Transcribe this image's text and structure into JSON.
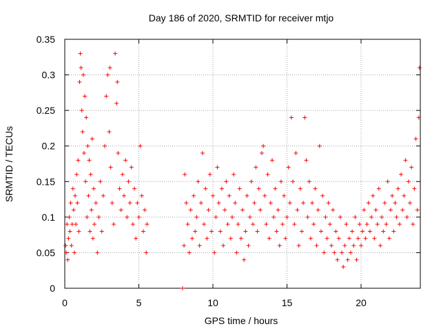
{
  "chart_data": {
    "type": "scatter",
    "title": "Day 186 of 2020, SRMTID for receiver mtjo",
    "xlabel": "GPS time / hours",
    "ylabel": "SRMTID / TECUs",
    "xlim": [
      0,
      24
    ],
    "ylim": [
      0,
      0.35
    ],
    "xticks": [
      0,
      5,
      10,
      15,
      20
    ],
    "xtick_labels": [
      "0",
      "5",
      "10",
      "15",
      "20"
    ],
    "yticks": [
      0,
      0.05,
      0.1,
      0.15,
      0.2,
      0.25,
      0.3,
      0.35
    ],
    "ytick_labels": [
      "0",
      "0.05",
      "0.1",
      "0.15",
      "0.2",
      "0.25",
      "0.3",
      "0.35"
    ],
    "grid": true,
    "marker": "+",
    "color": "#ff0000",
    "series": [
      {
        "name": "SRMTID",
        "points": [
          [
            0.05,
            0.06
          ],
          [
            0.1,
            0.05
          ],
          [
            0.15,
            0.09
          ],
          [
            0.2,
            0.04
          ],
          [
            0.25,
            0.07
          ],
          [
            0.3,
            0.1
          ],
          [
            0.35,
            0.08
          ],
          [
            0.4,
            0.12
          ],
          [
            0.45,
            0.06
          ],
          [
            0.5,
            0.09
          ],
          [
            0.55,
            0.14
          ],
          [
            0.6,
            0.11
          ],
          [
            0.65,
            0.05
          ],
          [
            0.7,
            0.13
          ],
          [
            0.75,
            0.09
          ],
          [
            0.8,
            0.16
          ],
          [
            0.85,
            0.12
          ],
          [
            0.9,
            0.18
          ],
          [
            0.95,
            0.08
          ],
          [
            1.0,
            0.29
          ],
          [
            1.05,
            0.33
          ],
          [
            1.1,
            0.31
          ],
          [
            1.15,
            0.25
          ],
          [
            1.2,
            0.22
          ],
          [
            1.25,
            0.3
          ],
          [
            1.3,
            0.19
          ],
          [
            1.35,
            0.27
          ],
          [
            1.4,
            0.15
          ],
          [
            1.45,
            0.24
          ],
          [
            1.5,
            0.1
          ],
          [
            1.55,
            0.2
          ],
          [
            1.6,
            0.13
          ],
          [
            1.65,
            0.18
          ],
          [
            1.7,
            0.08
          ],
          [
            1.75,
            0.16
          ],
          [
            1.8,
            0.11
          ],
          [
            1.85,
            0.21
          ],
          [
            1.9,
            0.07
          ],
          [
            1.95,
            0.14
          ],
          [
            2.0,
            0.09
          ],
          [
            2.1,
            0.12
          ],
          [
            2.2,
            0.05
          ],
          [
            2.3,
            0.1
          ],
          [
            2.4,
            0.15
          ],
          [
            2.5,
            0.08
          ],
          [
            2.6,
            0.13
          ],
          [
            2.7,
            0.2
          ],
          [
            2.8,
            0.27
          ],
          [
            2.9,
            0.3
          ],
          [
            3.0,
            0.22
          ],
          [
            3.05,
            0.31
          ],
          [
            3.1,
            0.17
          ],
          [
            3.2,
            0.12
          ],
          [
            3.3,
            0.09
          ],
          [
            3.4,
            0.33
          ],
          [
            3.5,
            0.26
          ],
          [
            3.55,
            0.29
          ],
          [
            3.6,
            0.19
          ],
          [
            3.7,
            0.14
          ],
          [
            3.8,
            0.11
          ],
          [
            3.9,
            0.16
          ],
          [
            4.0,
            0.13
          ],
          [
            4.1,
            0.18
          ],
          [
            4.2,
            0.1
          ],
          [
            4.3,
            0.15
          ],
          [
            4.4,
            0.12
          ],
          [
            4.5,
            0.17
          ],
          [
            4.6,
            0.09
          ],
          [
            4.7,
            0.14
          ],
          [
            4.8,
            0.07
          ],
          [
            4.9,
            0.12
          ],
          [
            5.0,
            0.1
          ],
          [
            5.1,
            0.2
          ],
          [
            5.2,
            0.13
          ],
          [
            5.3,
            0.08
          ],
          [
            5.4,
            0.11
          ],
          [
            5.5,
            0.05
          ],
          [
            5.55,
            0.09
          ],
          [
            7.95,
            0.0
          ],
          [
            8.05,
            0.06
          ],
          [
            8.1,
            0.16
          ],
          [
            8.2,
            0.12
          ],
          [
            8.3,
            0.09
          ],
          [
            8.4,
            0.05
          ],
          [
            8.5,
            0.11
          ],
          [
            8.6,
            0.07
          ],
          [
            8.7,
            0.13
          ],
          [
            8.8,
            0.08
          ],
          [
            8.9,
            0.1
          ],
          [
            9.0,
            0.15
          ],
          [
            9.1,
            0.06
          ],
          [
            9.2,
            0.12
          ],
          [
            9.3,
            0.19
          ],
          [
            9.4,
            0.09
          ],
          [
            9.5,
            0.14
          ],
          [
            9.6,
            0.07
          ],
          [
            9.7,
            0.11
          ],
          [
            9.8,
            0.16
          ],
          [
            9.9,
            0.08
          ],
          [
            10.0,
            0.13
          ],
          [
            10.1,
            0.05
          ],
          [
            10.2,
            0.1
          ],
          [
            10.3,
            0.17
          ],
          [
            10.4,
            0.12
          ],
          [
            10.5,
            0.08
          ],
          [
            10.6,
            0.14
          ],
          [
            10.7,
            0.06
          ],
          [
            10.8,
            0.11
          ],
          [
            10.9,
            0.15
          ],
          [
            11.0,
            0.09
          ],
          [
            11.1,
            0.13
          ],
          [
            11.2,
            0.07
          ],
          [
            11.3,
            0.1
          ],
          [
            11.4,
            0.16
          ],
          [
            11.5,
            0.12
          ],
          [
            11.6,
            0.05
          ],
          [
            11.7,
            0.09
          ],
          [
            11.8,
            0.14
          ],
          [
            11.9,
            0.07
          ],
          [
            12.0,
            0.11
          ],
          [
            12.1,
            0.04
          ],
          [
            12.2,
            0.08
          ],
          [
            12.3,
            0.13
          ],
          [
            12.4,
            0.06
          ],
          [
            12.5,
            0.1
          ],
          [
            12.6,
            0.15
          ],
          [
            12.7,
            0.09
          ],
          [
            12.8,
            0.12
          ],
          [
            12.9,
            0.17
          ],
          [
            13.0,
            0.08
          ],
          [
            13.1,
            0.14
          ],
          [
            13.2,
            0.11
          ],
          [
            13.3,
            0.19
          ],
          [
            13.4,
            0.2
          ],
          [
            13.5,
            0.13
          ],
          [
            13.6,
            0.09
          ],
          [
            13.7,
            0.16
          ],
          [
            13.8,
            0.07
          ],
          [
            13.9,
            0.12
          ],
          [
            14.0,
            0.18
          ],
          [
            14.1,
            0.1
          ],
          [
            14.2,
            0.14
          ],
          [
            14.3,
            0.08
          ],
          [
            14.4,
            0.11
          ],
          [
            14.5,
            0.06
          ],
          [
            14.6,
            0.15
          ],
          [
            14.7,
            0.09
          ],
          [
            14.8,
            0.13
          ],
          [
            14.9,
            0.07
          ],
          [
            15.0,
            0.1
          ],
          [
            15.1,
            0.17
          ],
          [
            15.2,
            0.12
          ],
          [
            15.3,
            0.24
          ],
          [
            15.4,
            0.15
          ],
          [
            15.5,
            0.09
          ],
          [
            15.6,
            0.19
          ],
          [
            15.7,
            0.11
          ],
          [
            15.8,
            0.06
          ],
          [
            15.9,
            0.14
          ],
          [
            16.0,
            0.08
          ],
          [
            16.1,
            0.12
          ],
          [
            16.2,
            0.24
          ],
          [
            16.3,
            0.18
          ],
          [
            16.4,
            0.1
          ],
          [
            16.5,
            0.15
          ],
          [
            16.6,
            0.07
          ],
          [
            16.7,
            0.12
          ],
          [
            16.8,
            0.09
          ],
          [
            16.9,
            0.14
          ],
          [
            17.0,
            0.06
          ],
          [
            17.1,
            0.11
          ],
          [
            17.2,
            0.2
          ],
          [
            17.3,
            0.08
          ],
          [
            17.4,
            0.13
          ],
          [
            17.5,
            0.05
          ],
          [
            17.6,
            0.1
          ],
          [
            17.7,
            0.07
          ],
          [
            17.8,
            0.12
          ],
          [
            17.9,
            0.09
          ],
          [
            18.0,
            0.06
          ],
          [
            18.1,
            0.11
          ],
          [
            18.2,
            0.05
          ],
          [
            18.3,
            0.08
          ],
          [
            18.4,
            0.04
          ],
          [
            18.5,
            0.07
          ],
          [
            18.6,
            0.1
          ],
          [
            18.7,
            0.05
          ],
          [
            18.8,
            0.03
          ],
          [
            18.9,
            0.06
          ],
          [
            19.0,
            0.09
          ],
          [
            19.1,
            0.04
          ],
          [
            19.2,
            0.07
          ],
          [
            19.3,
            0.05
          ],
          [
            19.4,
            0.08
          ],
          [
            19.5,
            0.06
          ],
          [
            19.6,
            0.1
          ],
          [
            19.7,
            0.04
          ],
          [
            19.8,
            0.07
          ],
          [
            19.9,
            0.09
          ],
          [
            20.0,
            0.06
          ],
          [
            20.1,
            0.08
          ],
          [
            20.2,
            0.11
          ],
          [
            20.3,
            0.07
          ],
          [
            20.4,
            0.09
          ],
          [
            20.5,
            0.12
          ],
          [
            20.6,
            0.08
          ],
          [
            20.7,
            0.1
          ],
          [
            20.8,
            0.13
          ],
          [
            20.9,
            0.07
          ],
          [
            21.0,
            0.11
          ],
          [
            21.1,
            0.09
          ],
          [
            21.2,
            0.14
          ],
          [
            21.3,
            0.06
          ],
          [
            21.4,
            0.1
          ],
          [
            21.5,
            0.08
          ],
          [
            21.6,
            0.12
          ],
          [
            21.7,
            0.09
          ],
          [
            21.8,
            0.15
          ],
          [
            21.9,
            0.07
          ],
          [
            22.0,
            0.11
          ],
          [
            22.1,
            0.13
          ],
          [
            22.2,
            0.08
          ],
          [
            22.3,
            0.12
          ],
          [
            22.4,
            0.1
          ],
          [
            22.5,
            0.14
          ],
          [
            22.6,
            0.09
          ],
          [
            22.7,
            0.16
          ],
          [
            22.8,
            0.11
          ],
          [
            22.9,
            0.13
          ],
          [
            23.0,
            0.18
          ],
          [
            23.1,
            0.1
          ],
          [
            23.2,
            0.15
          ],
          [
            23.3,
            0.12
          ],
          [
            23.4,
            0.17
          ],
          [
            23.5,
            0.09
          ],
          [
            23.6,
            0.14
          ],
          [
            23.7,
            0.21
          ],
          [
            23.8,
            0.11
          ],
          [
            23.9,
            0.24
          ],
          [
            23.95,
            0.31
          ]
        ]
      }
    ]
  }
}
